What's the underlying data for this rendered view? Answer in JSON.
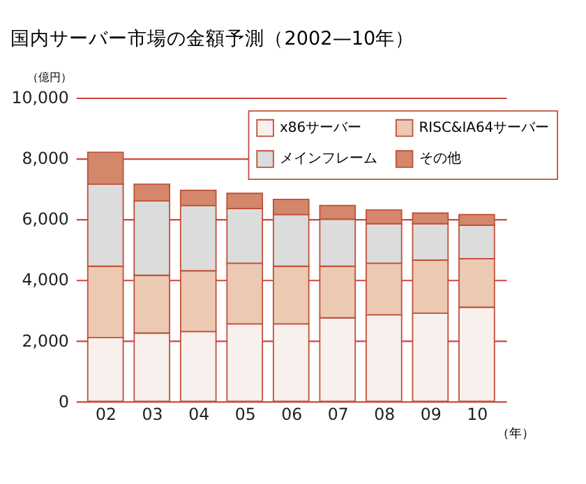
{
  "chart_data": {
    "type": "bar",
    "title": "国内サーバー市場の金額予測（2002—10年）",
    "ylabel": "（億円）",
    "xlabel": "（年）",
    "categories": [
      "02",
      "03",
      "04",
      "05",
      "06",
      "07",
      "08",
      "09",
      "10"
    ],
    "stacked": true,
    "series": [
      {
        "name": "x86サーバー",
        "color": "#f8f0ec",
        "values": [
          2100,
          2250,
          2300,
          2550,
          2550,
          2750,
          2850,
          2900,
          3100
        ]
      },
      {
        "name": "RISC&IA64サーバー",
        "color": "#ecc9b3",
        "values": [
          2350,
          1900,
          2000,
          2000,
          1900,
          1700,
          1700,
          1750,
          1600
        ]
      },
      {
        "name": "メインフレーム",
        "color": "#dcdcdc",
        "values": [
          2700,
          2450,
          2150,
          1800,
          1700,
          1550,
          1300,
          1200,
          1100
        ]
      },
      {
        "name": "その他",
        "color": "#d4876a",
        "values": [
          1050,
          550,
          500,
          500,
          500,
          450,
          450,
          350,
          350
        ]
      }
    ],
    "ylim": [
      0,
      10000
    ],
    "yticks": [
      0,
      {
        "value": 2000,
        "label": "2,000"
      },
      {
        "value": 4000,
        "label": "4,000"
      },
      {
        "value": 6000,
        "label": "6,000"
      },
      {
        "value": 8000,
        "label": "8,000"
      },
      {
        "value": 10000,
        "label": "10,000"
      }
    ],
    "grid": "y",
    "legend": "top right"
  }
}
